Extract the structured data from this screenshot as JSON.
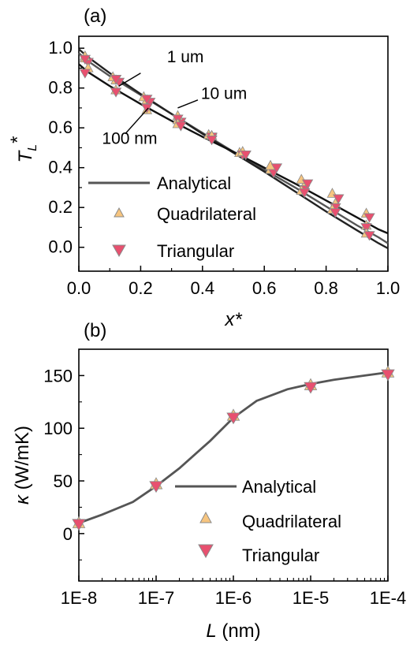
{
  "colors": {
    "analytical": "#555555",
    "quad_fill": "#f7c57f",
    "tri_fill": "#e8506f",
    "marker_stroke": "#8a8a8a",
    "axis": "#000000"
  },
  "chart_data": [
    {
      "panel": "(a)",
      "type": "line",
      "xlabel": "x*",
      "ylabel_main": "T",
      "ylabel_sub": "L",
      "ylabel_sup": "*",
      "xlim": [
        0,
        1.0
      ],
      "ylim": [
        -0.12,
        1.06
      ],
      "xticks": [
        0.0,
        0.2,
        0.4,
        0.6,
        0.8,
        1.0
      ],
      "xtick_labels": [
        "0.0",
        "0.2",
        "0.4",
        "0.6",
        "0.8",
        "1.0"
      ],
      "yticks": [
        0.0,
        0.2,
        0.4,
        0.6,
        0.8,
        1.0
      ],
      "ytick_labels": [
        "0.0",
        "0.2",
        "0.4",
        "0.6",
        "0.8",
        "1.0"
      ],
      "legend": [
        "Analytical",
        "Quadrilateral",
        "Triangular"
      ],
      "annotations": [
        {
          "text": "1 um",
          "x": 0.285,
          "y": 0.93,
          "ax": 0.2,
          "ay": 0.875,
          "bx": 0.13,
          "by": 0.81
        },
        {
          "text": "10 um",
          "x": 0.395,
          "y": 0.745,
          "ax": 0.385,
          "ay": 0.74,
          "bx": 0.32,
          "by": 0.7
        },
        {
          "text": "100 nm",
          "x": 0.075,
          "y": 0.52,
          "ax": 0.15,
          "ay": 0.57,
          "bx": 0.225,
          "by": 0.7
        }
      ],
      "series": [
        {
          "label": "1 um",
          "analytical": [
            [
              0,
              0.975
            ],
            [
              0.03,
              0.935
            ],
            [
              0.1,
              0.86
            ],
            [
              0.2,
              0.765
            ],
            [
              0.3,
              0.67
            ],
            [
              0.4,
              0.575
            ],
            [
              0.5,
              0.48
            ],
            [
              0.6,
              0.39
            ],
            [
              0.7,
              0.3
            ],
            [
              0.8,
              0.205
            ],
            [
              0.9,
              0.11
            ],
            [
              0.97,
              0.05
            ],
            [
              1.0,
              0.02
            ]
          ],
          "quadrilateral": [
            [
              0.02,
              0.95
            ],
            [
              0.12,
              0.84
            ],
            [
              0.22,
              0.74
            ],
            [
              0.32,
              0.64
            ],
            [
              0.43,
              0.56
            ],
            [
              0.53,
              0.475
            ],
            [
              0.62,
              0.41
            ],
            [
              0.73,
              0.31
            ],
            [
              0.83,
              0.22
            ],
            [
              0.93,
              0.11
            ]
          ],
          "triangular": [
            [
              0.03,
              0.93
            ],
            [
              0.13,
              0.83
            ],
            [
              0.23,
              0.73
            ],
            [
              0.33,
              0.63
            ],
            [
              0.43,
              0.55
            ],
            [
              0.53,
              0.465
            ],
            [
              0.63,
              0.38
            ],
            [
              0.73,
              0.29
            ],
            [
              0.83,
              0.2
            ],
            [
              0.93,
              0.1
            ]
          ]
        },
        {
          "label": "10 um",
          "analytical": [
            [
              0,
              0.995
            ],
            [
              0.03,
              0.955
            ],
            [
              0.1,
              0.875
            ],
            [
              0.2,
              0.77
            ],
            [
              0.3,
              0.67
            ],
            [
              0.4,
              0.57
            ],
            [
              0.5,
              0.475
            ],
            [
              0.6,
              0.38
            ],
            [
              0.7,
              0.28
            ],
            [
              0.8,
              0.18
            ],
            [
              0.9,
              0.085
            ],
            [
              0.97,
              0.02
            ],
            [
              1.0,
              -0.005
            ]
          ],
          "quadrilateral": [
            [
              0.02,
              0.96
            ],
            [
              0.11,
              0.855
            ],
            [
              0.21,
              0.755
            ],
            [
              0.32,
              0.66
            ],
            [
              0.42,
              0.565
            ],
            [
              0.52,
              0.475
            ],
            [
              0.62,
              0.39
            ],
            [
              0.72,
              0.285
            ],
            [
              0.82,
              0.19
            ],
            [
              0.93,
              0.07
            ]
          ],
          "triangular": [
            [
              0.02,
              0.945
            ],
            [
              0.12,
              0.845
            ],
            [
              0.22,
              0.745
            ],
            [
              0.32,
              0.645
            ],
            [
              0.43,
              0.555
            ],
            [
              0.53,
              0.465
            ],
            [
              0.63,
              0.375
            ],
            [
              0.73,
              0.275
            ],
            [
              0.83,
              0.175
            ],
            [
              0.94,
              0.06
            ]
          ]
        },
        {
          "label": "100 nm",
          "analytical": [
            [
              0,
              0.92
            ],
            [
              0.03,
              0.88
            ],
            [
              0.1,
              0.81
            ],
            [
              0.2,
              0.72
            ],
            [
              0.3,
              0.635
            ],
            [
              0.4,
              0.555
            ],
            [
              0.5,
              0.48
            ],
            [
              0.6,
              0.4
            ],
            [
              0.7,
              0.32
            ],
            [
              0.8,
              0.235
            ],
            [
              0.9,
              0.15
            ],
            [
              0.97,
              0.09
            ],
            [
              1.0,
              0.07
            ]
          ],
          "quadrilateral": [
            [
              0.03,
              0.9
            ],
            [
              0.12,
              0.79
            ],
            [
              0.22,
              0.69
            ],
            [
              0.32,
              0.62
            ],
            [
              0.43,
              0.56
            ],
            [
              0.53,
              0.48
            ],
            [
              0.62,
              0.41
            ],
            [
              0.72,
              0.34
            ],
            [
              0.82,
              0.27
            ],
            [
              0.93,
              0.17
            ]
          ],
          "triangular": [
            [
              0.02,
              0.875
            ],
            [
              0.12,
              0.78
            ],
            [
              0.22,
              0.7
            ],
            [
              0.33,
              0.61
            ],
            [
              0.43,
              0.54
            ],
            [
              0.54,
              0.465
            ],
            [
              0.64,
              0.4
            ],
            [
              0.74,
              0.32
            ],
            [
              0.84,
              0.245
            ],
            [
              0.94,
              0.15
            ]
          ]
        }
      ]
    },
    {
      "panel": "(b)",
      "type": "line",
      "xlabel_main": "L",
      "xlabel_rest": " (nm)",
      "ylabel_symbol": "κ",
      "ylabel_rest": " (W/mK)",
      "xscale": "log",
      "xlim": [
        1e-08,
        0.0001
      ],
      "ylim": [
        -45,
        175
      ],
      "xticks": [
        1e-08,
        1e-07,
        1e-06,
        1e-05,
        0.0001
      ],
      "xtick_labels": [
        "1E-8",
        "1E-7",
        "1E-6",
        "1E-5",
        "1E-4"
      ],
      "yticks": [
        0,
        50,
        100,
        150
      ],
      "ytick_labels": [
        "0",
        "50",
        "100",
        "150"
      ],
      "legend": [
        "Analytical",
        "Quadrilateral",
        "Triangular"
      ],
      "series": [
        {
          "name": "Analytical",
          "x": [
            1e-08,
            2e-08,
            5e-08,
            1e-07,
            2e-07,
            5e-07,
            1e-06,
            2e-06,
            5e-06,
            1e-05,
            2e-05,
            5e-05,
            0.0001
          ],
          "values": [
            10,
            18,
            30,
            45,
            62,
            88,
            110,
            126,
            137,
            142,
            146,
            150,
            153
          ]
        },
        {
          "name": "Quadrilateral",
          "x": [
            1e-08,
            1e-07,
            1e-06,
            1e-05,
            0.0001
          ],
          "values": [
            10,
            47,
            112,
            141,
            153
          ]
        },
        {
          "name": "Triangular",
          "x": [
            1e-08,
            1e-07,
            1e-06,
            1e-05,
            0.0001
          ],
          "values": [
            9,
            45,
            110,
            139,
            151
          ]
        }
      ]
    }
  ]
}
